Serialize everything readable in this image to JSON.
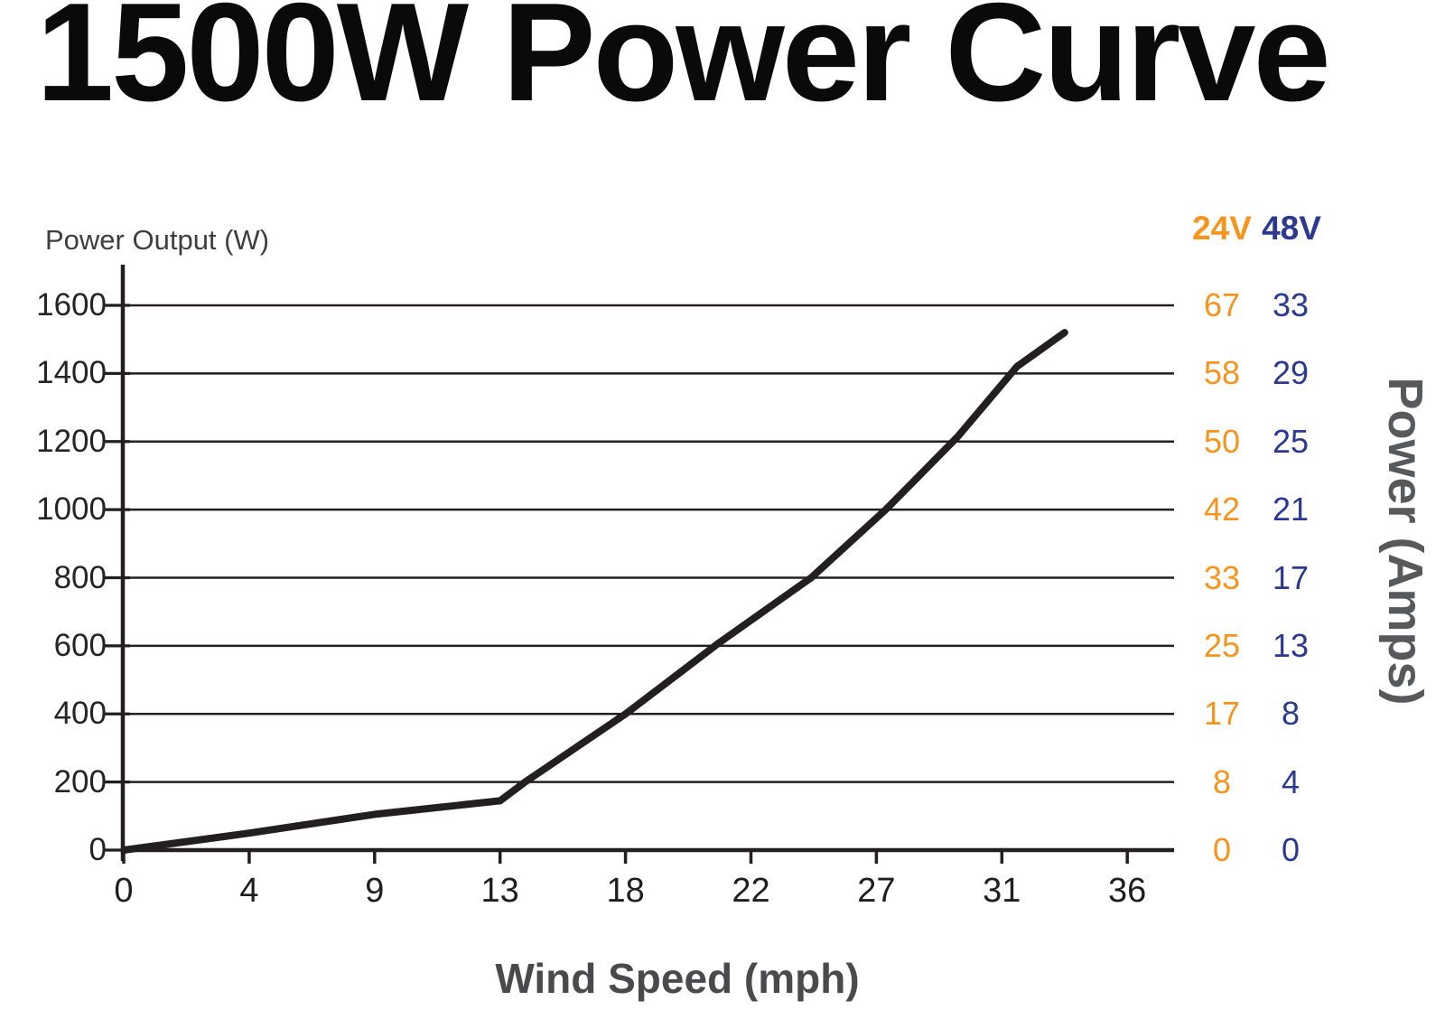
{
  "page": {
    "title": "1500W Power Curve"
  },
  "chart_data": {
    "type": "line",
    "title": "1500W Power Curve",
    "xlabel": "Wind Speed (mph)",
    "ylabel": "Power Output (W)",
    "y2label": "Power (Amps)",
    "x_tick_labels": [
      "0",
      "4",
      "9",
      "13",
      "18",
      "22",
      "27",
      "31",
      "36"
    ],
    "x_tick_values": [
      0,
      4,
      9,
      13,
      18,
      22,
      27,
      31,
      36
    ],
    "y_tick_labels": [
      "0",
      "200",
      "400",
      "600",
      "800",
      "1000",
      "1200",
      "1400",
      "1600"
    ],
    "y_ticks": [
      0,
      200,
      400,
      600,
      800,
      1000,
      1200,
      1400,
      1600
    ],
    "ylim": [
      0,
      1700
    ],
    "grid": true,
    "legend_position": "none",
    "series": [
      {
        "name": "Power Output (W)",
        "x": [
          0,
          4,
          9,
          13,
          14,
          18,
          21,
          24.4,
          27.3,
          29.6,
          31.6,
          33.5
        ],
        "values": [
          0,
          50,
          105,
          145,
          200,
          400,
          610,
          800,
          1000,
          1215,
          1420,
          1520
        ]
      }
    ],
    "amp_table": {
      "headers": [
        {
          "label": "24V",
          "color": "#F7941E"
        },
        {
          "label": "48V",
          "color": "#2B3990"
        }
      ],
      "rows_power_w": [
        1600,
        1400,
        1200,
        1000,
        800,
        600,
        400,
        200,
        0
      ],
      "amps_24v": [
        67,
        58,
        50,
        42,
        33,
        25,
        17,
        8,
        0
      ],
      "amps_48v": [
        33,
        29,
        25,
        21,
        17,
        13,
        8,
        4,
        0
      ]
    }
  },
  "colors": {
    "curve": "#231f20",
    "axis": "#231f20",
    "grid": "#2a2829",
    "orange": "#F7941E",
    "blue": "#2B3990"
  }
}
